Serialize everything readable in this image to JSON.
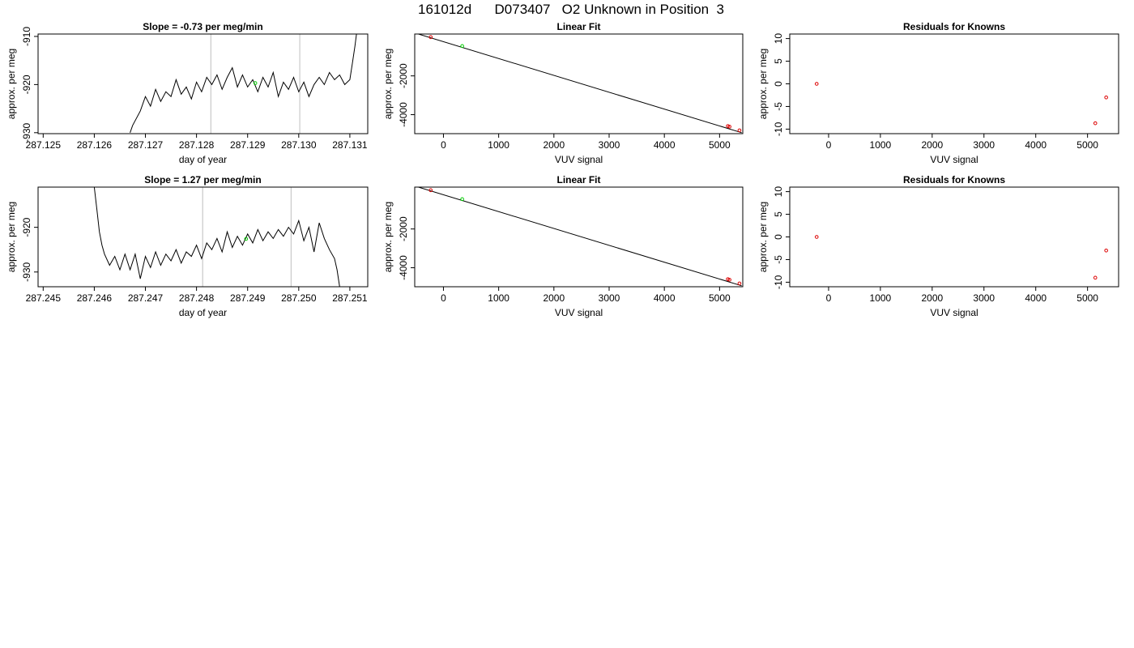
{
  "page_title": "161012d      D073407   O2 Unknown in Position  3",
  "colors": {
    "line": "#000000",
    "vline": "#bebebe",
    "known_point": "#dd0000",
    "unknown_point": "#00cc00"
  },
  "chart_data": [
    {
      "type": "line",
      "title": "Slope =  -0.73  per meg/min",
      "xlabel": "day of year",
      "ylabel": "approx. per meg",
      "xlim": [
        287.1249,
        287.13135
      ],
      "ylim": [
        -930.2,
        -909.5
      ],
      "xticks": [
        "287.125",
        "287.126",
        "287.127",
        "287.128",
        "287.129",
        "287.130",
        "287.131"
      ],
      "xtick_values": [
        287.125,
        287.126,
        287.127,
        287.128,
        287.129,
        287.13,
        287.131
      ],
      "yticks": [
        "-910",
        "-920",
        "-930"
      ],
      "ytick_values": [
        -910,
        -920,
        -930
      ],
      "vlines": [
        287.12828,
        287.13002
      ],
      "marker": {
        "x": 287.12915,
        "y": -919.7
      },
      "series": [
        {
          "x": [
            287.1267,
            287.12675,
            287.1269,
            287.127,
            287.1271,
            287.1272,
            287.1273,
            287.1274,
            287.1275,
            287.1276,
            287.1277,
            287.1278,
            287.1279,
            287.128,
            287.1281,
            287.1282,
            287.1283,
            287.1284,
            287.1285,
            287.1286,
            287.1287,
            287.1288,
            287.1289,
            287.129,
            287.1291,
            287.1292,
            287.1293,
            287.1294,
            287.1295,
            287.1296,
            287.1297,
            287.1298,
            287.1299,
            287.13,
            287.1301,
            287.1302,
            287.1303,
            287.1304,
            287.1305,
            287.1306,
            287.1307,
            287.1308,
            287.1309,
            287.131,
            287.13105,
            287.1311,
            287.13113
          ],
          "y": [
            -930.0,
            -928.5,
            -925.5,
            -922.5,
            -924.5,
            -921.0,
            -923.5,
            -921.5,
            -922.5,
            -919.0,
            -922.0,
            -920.5,
            -923.0,
            -919.5,
            -921.5,
            -918.5,
            -920.0,
            -918.0,
            -921.0,
            -918.5,
            -916.5,
            -920.5,
            -918.0,
            -920.5,
            -919.0,
            -921.5,
            -918.5,
            -920.5,
            -917.5,
            -922.5,
            -919.5,
            -921.0,
            -918.5,
            -921.5,
            -919.5,
            -922.5,
            -920.0,
            -918.5,
            -920.0,
            -917.5,
            -919.0,
            -918.0,
            -920.0,
            -919.0,
            -915.5,
            -912.0,
            -909.5
          ]
        }
      ]
    },
    {
      "type": "scatter",
      "title": "Linear Fit",
      "xlabel": "VUV signal",
      "ylabel": "approx. per meg",
      "xlim": [
        -520,
        5420
      ],
      "ylim": [
        -4980,
        160
      ],
      "xticks": [
        "0",
        "1000",
        "2000",
        "3000",
        "4000",
        "5000"
      ],
      "xtick_values": [
        0,
        1000,
        2000,
        3000,
        4000,
        5000
      ],
      "yticks": [
        "-2000",
        "-4000"
      ],
      "ytick_values": [
        -2000,
        -4000
      ],
      "fit_line": {
        "x": [
          -500,
          5400
        ],
        "y": [
          200,
          -4930
        ]
      },
      "points": [
        {
          "x": -230,
          "y": 0,
          "group": "known"
        },
        {
          "x": 340,
          "y": -460,
          "group": "unknown"
        },
        {
          "x": 5150,
          "y": -4590,
          "group": "known"
        },
        {
          "x": 5180,
          "y": -4620,
          "group": "known"
        },
        {
          "x": 5360,
          "y": -4810,
          "group": "known"
        }
      ]
    },
    {
      "type": "scatter",
      "title": "Residuals for Knowns",
      "xlabel": "VUV signal",
      "ylabel": "approx. per meg",
      "xlim": [
        -750,
        5600
      ],
      "ylim": [
        -11,
        11
      ],
      "xticks": [
        "0",
        "1000",
        "2000",
        "3000",
        "4000",
        "5000"
      ],
      "xtick_values": [
        0,
        1000,
        2000,
        3000,
        4000,
        5000
      ],
      "yticks": [
        "10",
        "5",
        "0",
        "-5",
        "-10"
      ],
      "ytick_values": [
        10,
        5,
        0,
        -5,
        -10
      ],
      "points": [
        {
          "x": -230,
          "y": 0.0
        },
        {
          "x": 5150,
          "y": -8.7
        },
        {
          "x": 5360,
          "y": -3.0
        }
      ]
    },
    {
      "type": "line",
      "title": "Slope =  1.27  per meg/min",
      "xlabel": "day of year",
      "ylabel": "approx. per meg",
      "xlim": [
        287.2449,
        287.25135
      ],
      "ylim": [
        -933.3,
        -911.0
      ],
      "xticks": [
        "287.245",
        "287.246",
        "287.247",
        "287.248",
        "287.249",
        "287.250",
        "287.251"
      ],
      "xtick_values": [
        287.245,
        287.246,
        287.247,
        287.248,
        287.249,
        287.25,
        287.251
      ],
      "yticks": [
        "-920",
        "-930"
      ],
      "ytick_values": [
        -920,
        -930
      ],
      "vlines": [
        287.24812,
        287.24985
      ],
      "marker": {
        "x": 287.24897,
        "y": -922.6
      },
      "series": [
        {
          "x": [
            287.246,
            287.24605,
            287.2461,
            287.24615,
            287.2462,
            287.2463,
            287.2464,
            287.2465,
            287.2466,
            287.2467,
            287.2468,
            287.2469,
            287.247,
            287.2471,
            287.2472,
            287.2473,
            287.2474,
            287.2475,
            287.2476,
            287.2477,
            287.2478,
            287.2479,
            287.248,
            287.2481,
            287.2482,
            287.2483,
            287.2484,
            287.2485,
            287.2486,
            287.2487,
            287.2488,
            287.2489,
            287.249,
            287.2491,
            287.2492,
            287.2493,
            287.2494,
            287.2495,
            287.2496,
            287.2497,
            287.2498,
            287.2499,
            287.25,
            287.2501,
            287.2502,
            287.2503,
            287.2504,
            287.2505,
            287.2506,
            287.2507,
            287.25075,
            287.2508
          ],
          "y": [
            -911.0,
            -916.0,
            -921.0,
            -924.0,
            -926.0,
            -928.5,
            -926.5,
            -929.5,
            -926.0,
            -929.5,
            -926.0,
            -931.5,
            -926.5,
            -929.0,
            -925.5,
            -928.5,
            -926.0,
            -927.5,
            -925.0,
            -928.0,
            -925.5,
            -926.5,
            -924.0,
            -927.0,
            -923.5,
            -925.0,
            -922.5,
            -925.5,
            -921.0,
            -924.5,
            -922.0,
            -924.0,
            -921.5,
            -923.5,
            -920.5,
            -923.0,
            -921.0,
            -922.5,
            -920.5,
            -922.0,
            -920.0,
            -921.5,
            -918.5,
            -923.0,
            -920.0,
            -925.5,
            -919.0,
            -922.5,
            -925.0,
            -927.0,
            -929.5,
            -933.3
          ]
        }
      ]
    },
    {
      "type": "scatter",
      "title": "Linear Fit",
      "xlabel": "VUV signal",
      "ylabel": "approx. per meg",
      "xlim": [
        -520,
        5420
      ],
      "ylim": [
        -4980,
        160
      ],
      "xticks": [
        "0",
        "1000",
        "2000",
        "3000",
        "4000",
        "5000"
      ],
      "xtick_values": [
        0,
        1000,
        2000,
        3000,
        4000,
        5000
      ],
      "yticks": [
        "-2000",
        "-4000"
      ],
      "ytick_values": [
        -2000,
        -4000
      ],
      "fit_line": {
        "x": [
          -500,
          5400
        ],
        "y": [
          200,
          -4930
        ]
      },
      "points": [
        {
          "x": -230,
          "y": 0,
          "group": "known"
        },
        {
          "x": 340,
          "y": -460,
          "group": "unknown"
        },
        {
          "x": 5150,
          "y": -4590,
          "group": "known"
        },
        {
          "x": 5180,
          "y": -4620,
          "group": "known"
        },
        {
          "x": 5360,
          "y": -4810,
          "group": "known"
        }
      ]
    },
    {
      "type": "scatter",
      "title": "Residuals for Knowns",
      "xlabel": "VUV signal",
      "ylabel": "approx. per meg",
      "xlim": [
        -750,
        5600
      ],
      "ylim": [
        -11,
        11
      ],
      "xticks": [
        "0",
        "1000",
        "2000",
        "3000",
        "4000",
        "5000"
      ],
      "xtick_values": [
        0,
        1000,
        2000,
        3000,
        4000,
        5000
      ],
      "yticks": [
        "10",
        "5",
        "0",
        "-5",
        "-10"
      ],
      "ytick_values": [
        10,
        5,
        0,
        -5,
        -10
      ],
      "points": [
        {
          "x": -230,
          "y": 0.0
        },
        {
          "x": 5150,
          "y": -9.0
        },
        {
          "x": 5360,
          "y": -3.0
        }
      ]
    }
  ]
}
